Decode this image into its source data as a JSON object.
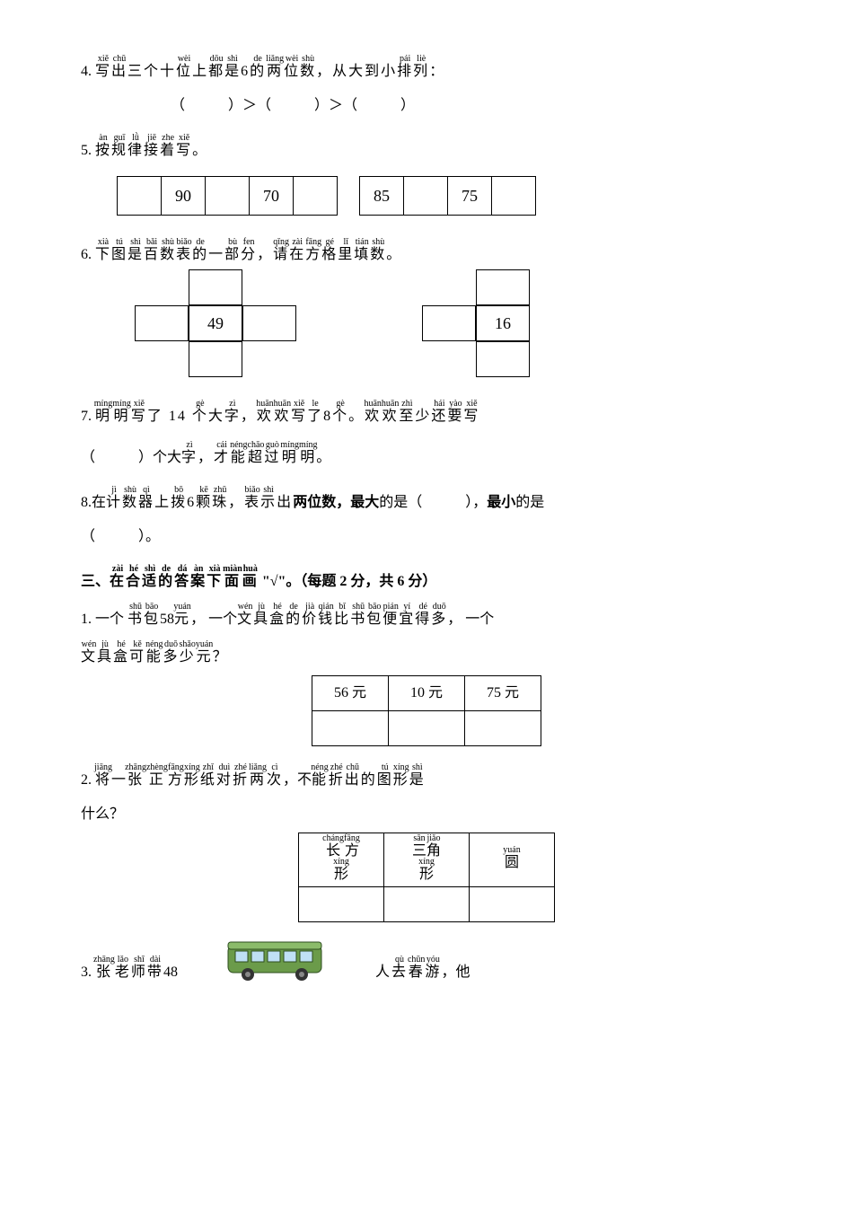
{
  "q4": {
    "num": "4.",
    "line_chars": [
      "写",
      "出",
      "三",
      "个",
      "十",
      "位",
      "上",
      "都",
      "是",
      "6",
      "的",
      "两",
      "位",
      "数",
      "，",
      "从",
      "大",
      "到",
      "小",
      "排",
      "列",
      "："
    ],
    "line_py": [
      "xiě",
      "chū",
      "",
      "",
      "",
      "wèi",
      "",
      "dōu",
      "shì",
      "",
      "de",
      "liǎng",
      "wèi",
      "shù",
      "",
      "",
      "",
      "",
      "",
      "pái",
      "liè",
      ""
    ],
    "answer_line": "（　　　）＞（　　　）＞（　　　）"
  },
  "q5": {
    "num": "5.",
    "line_chars": [
      "按",
      "规",
      "律",
      "接",
      "着",
      "写",
      "。"
    ],
    "line_py": [
      "àn",
      "guī",
      "lǜ",
      "jiē",
      "zhe",
      "xiě",
      ""
    ],
    "seq1": [
      "",
      "90",
      "",
      "70",
      ""
    ],
    "seq2": [
      "85",
      "",
      "75",
      ""
    ]
  },
  "q6": {
    "num": "6.",
    "line_chars": [
      "下",
      "图",
      "是",
      "百",
      "数",
      "表",
      "的",
      "一",
      "部",
      "分",
      "，",
      "请",
      "在",
      "方",
      "格",
      "里",
      "填",
      "数",
      "。"
    ],
    "line_py": [
      "xià",
      "tú",
      "shì",
      "bǎi",
      "shù",
      "biǎo",
      "de",
      "",
      "bù",
      "fen",
      "",
      "qǐng",
      "zài",
      "fāng",
      "gé",
      "lǐ",
      "tián",
      "shù",
      ""
    ],
    "cross1_center": "49",
    "cross2_center": "16"
  },
  "q7": {
    "num": "7.",
    "p1_chars": [
      "明",
      "明",
      "写",
      "了",
      " 14 ",
      "个",
      "大",
      "字",
      "，",
      "欢",
      "欢",
      "写",
      "了",
      "8",
      "个",
      "。",
      "欢",
      "欢",
      "至",
      "少",
      "还",
      "要",
      "写"
    ],
    "p1_py": [
      "míng",
      "míng",
      "xiě",
      "",
      "",
      "gè",
      "",
      "zì",
      "",
      "huān",
      "huān",
      "xiě",
      "le",
      "",
      "gè",
      "",
      "huān",
      "huān",
      "zhì",
      "",
      "hái",
      "yào",
      "xiě"
    ],
    "p2_before": "（　　　）个大",
    "p2_chars": [
      "字",
      "，",
      "才",
      "能",
      "超",
      "过",
      "明",
      "明",
      "。"
    ],
    "p2_py": [
      "zì",
      "",
      "cái",
      "néng",
      "chāo",
      "guò",
      "míng",
      "míng",
      ""
    ]
  },
  "q8": {
    "num": "8.",
    "pre": "在",
    "chars1": [
      "计",
      "数",
      "器",
      "上",
      "拨",
      "6",
      "颗",
      "珠",
      "，",
      "表",
      "示",
      "出"
    ],
    "py1": [
      "jì",
      "shù",
      "qì",
      "",
      "bō",
      "",
      "kē",
      "zhū",
      "",
      "biǎo",
      "shì",
      ""
    ],
    "bold1": "两位数，最大",
    "mid": "的是（　　　），",
    "bold2": "最小",
    "tail": "的是",
    "line2": "（　　　）。"
  },
  "section3": {
    "label_pre": "三、",
    "chars": [
      "在",
      "合",
      "适",
      "的",
      "答",
      "案",
      "下",
      "面",
      "画"
    ],
    "py": [
      "zài",
      "hé",
      "shì",
      "de",
      "dá",
      "àn",
      "xià",
      "miàn",
      "huà"
    ],
    "tail": "\"√\"。（每题 2 分，共 6 分）"
  },
  "s3q1": {
    "num": "1.",
    "p1a": "一个 ",
    "c1": [
      "书",
      "包"
    ],
    "p1": [
      "shū",
      "bāo"
    ],
    "mid1": "58",
    "c2": [
      "元"
    ],
    "p2": [
      "yuán"
    ],
    "mid2": "， 一个",
    "c3": [
      "文",
      "具",
      "盒",
      "的",
      "价",
      "钱",
      "比",
      "书",
      "包",
      "便",
      "宜",
      "得",
      "多"
    ],
    "p3": [
      "wén",
      "jù",
      "hé",
      "de",
      "jià",
      "qián",
      "bǐ",
      "shū",
      "bāo",
      "pián",
      "yí",
      "dé",
      "duō"
    ],
    "mid3": "， 一个",
    "c4": [
      "文",
      "具",
      "盒",
      "可",
      "能",
      "多",
      "少",
      "元"
    ],
    "p4": [
      "wén",
      "jù",
      "hé",
      "kě",
      "néng",
      "duō",
      "shǎo",
      "yuán"
    ],
    "end": "？",
    "options": [
      "56 元",
      "10 元",
      "75 元"
    ]
  },
  "s3q2": {
    "num": "2.",
    "c1": [
      "将",
      "一",
      "张",
      "正",
      "方",
      "形",
      "纸",
      "对",
      "折",
      "两",
      "次"
    ],
    "p1": [
      "jiāng",
      "",
      "zhāng",
      "zhèng",
      "fāng",
      "xíng",
      "zhǐ",
      "duì",
      "zhé",
      "liǎng",
      "cì"
    ],
    "mid": "，不",
    "c2": [
      "能",
      "折",
      "出",
      "的",
      "图",
      "形",
      "是"
    ],
    "p2": [
      "néng",
      "zhé",
      "chū",
      "",
      "tú",
      "xíng",
      "shì"
    ],
    "line2": "什么？",
    "opts": [
      {
        "c": [
          "长",
          "方"
        ],
        "p": [
          "cháng",
          "fāng"
        ],
        "c2": [
          "形"
        ],
        "p2": [
          "xíng"
        ]
      },
      {
        "c": [
          "三",
          "角"
        ],
        "p": [
          "sān",
          "jiǎo"
        ],
        "c2": [
          "形"
        ],
        "p2": [
          "xíng"
        ]
      },
      {
        "c": [
          "圆"
        ],
        "p": [
          "yuán"
        ],
        "c2": [],
        "p2": []
      }
    ]
  },
  "s3q3": {
    "num": "3.",
    "c1": [
      "张",
      "老",
      "师",
      "带"
    ],
    "p1": [
      "zhāng",
      "lǎo",
      "shī",
      "dài"
    ],
    "mid": "48",
    "c2": [
      "人",
      "去",
      "春",
      "游"
    ],
    "p2": [
      "",
      "qù",
      "chūn",
      "yóu"
    ],
    "tail": "，他",
    "bus_color_body": "#6b9b4a",
    "bus_color_window": "#bfe0f5",
    "bus_color_wheel": "#333"
  }
}
